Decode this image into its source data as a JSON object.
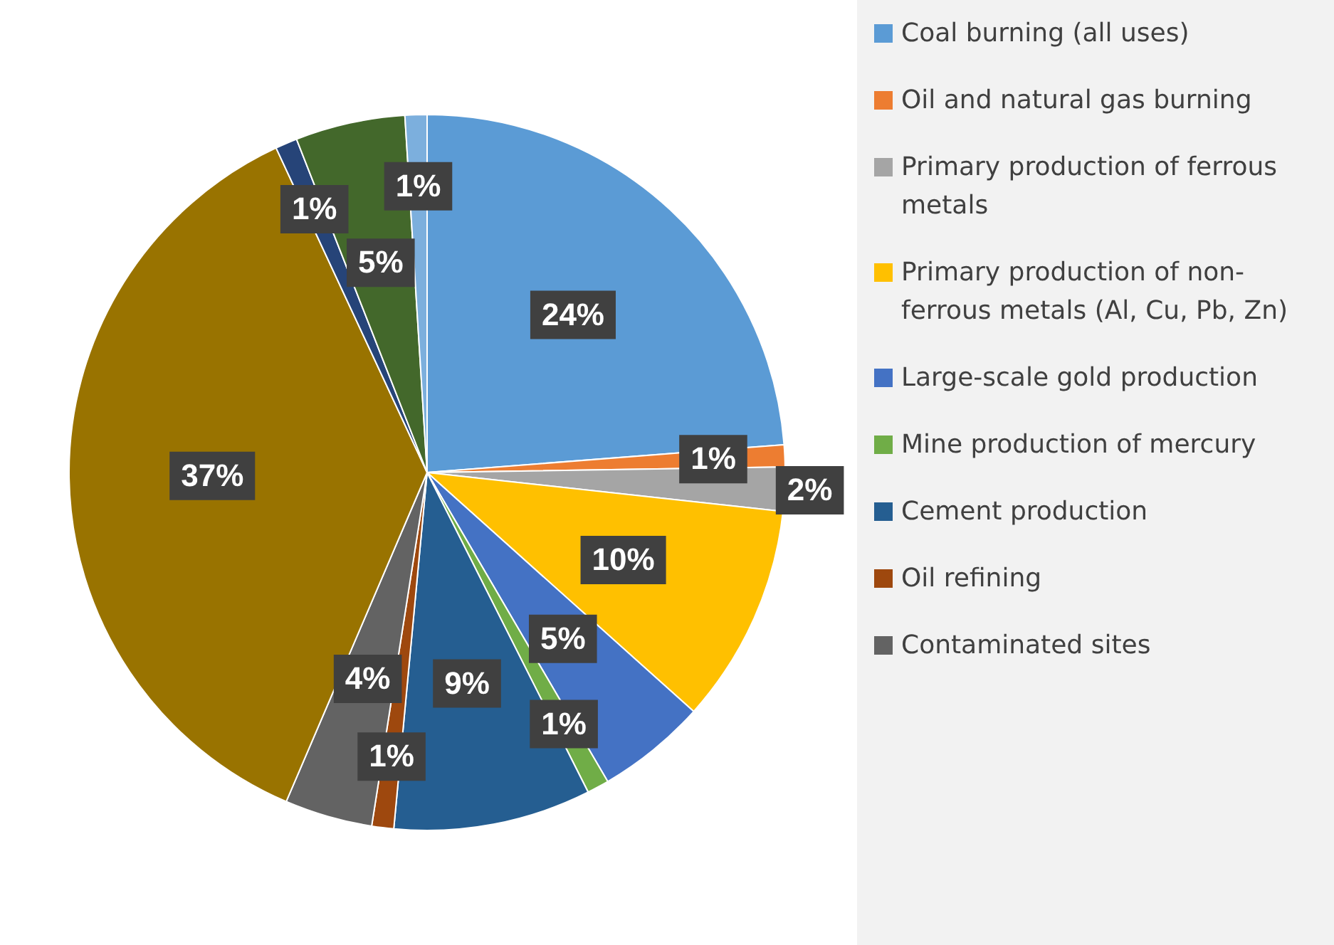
{
  "chart_data": {
    "type": "pie",
    "categories": [
      "Coal burning (all uses)",
      "Oil and natural gas burning",
      "Primary production of ferrous metals",
      "Primary production of non-ferrous metals (Al, Cu, Pb, Zn)",
      "Large-scale gold production",
      "Mine production of mercury",
      "Cement production",
      "Oil refining",
      "Contaminated sites",
      null,
      null,
      null,
      null
    ],
    "values": [
      24,
      1,
      2,
      10,
      5,
      1,
      9,
      1,
      4,
      37,
      1,
      5,
      1
    ],
    "colors": [
      "#5b9bd5",
      "#ed7d31",
      "#a5a5a5",
      "#ffc000",
      "#4472c4",
      "#70ad47",
      "#255e91",
      "#9e480e",
      "#636363",
      "#997300",
      "#264478",
      "#43682b",
      "#7cafdd"
    ],
    "value_labels": [
      "24%",
      "1%",
      "2%",
      "10%",
      "5%",
      "1%",
      "9%",
      "1%",
      "4%",
      "37%",
      "1%",
      "5%",
      "1%"
    ],
    "legend": "right"
  }
}
